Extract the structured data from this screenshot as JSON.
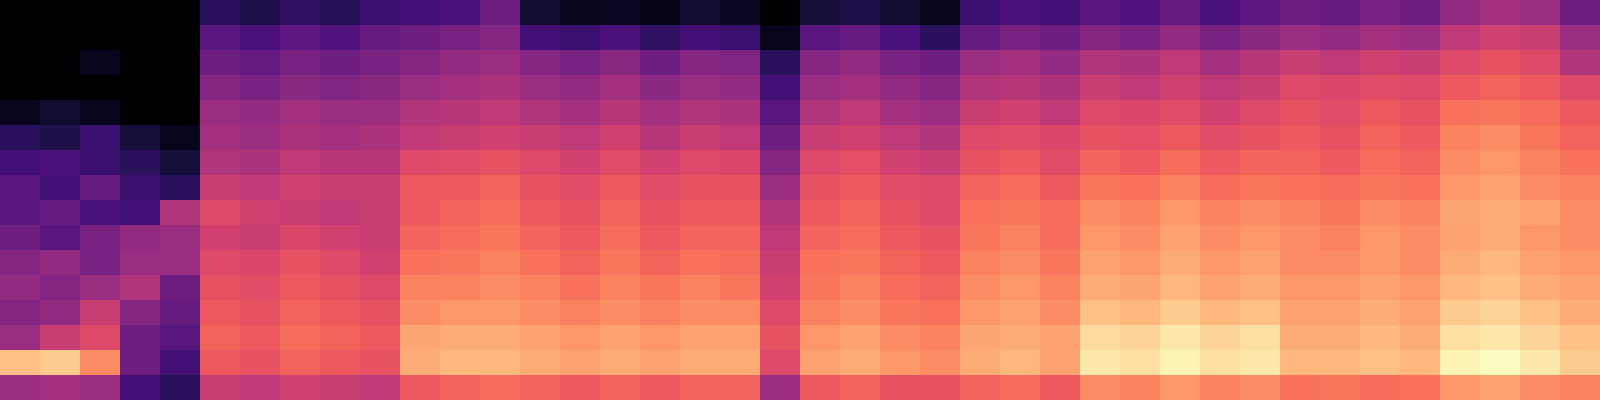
{
  "chart_data": {
    "type": "heatmap",
    "color": "magma",
    "tick_labels": false,
    "cells": [
      [
        0,
        0,
        0,
        0,
        0,
        15,
        12,
        16,
        14,
        18,
        20,
        22,
        30,
        8,
        5,
        6,
        4,
        8,
        6,
        0,
        10,
        12,
        8,
        5,
        18,
        22,
        20,
        25,
        24,
        28,
        22,
        26,
        30,
        28,
        32,
        30,
        38,
        42,
        40,
        30
      ],
      [
        0,
        0,
        0,
        0,
        0,
        25,
        22,
        26,
        24,
        28,
        30,
        32,
        35,
        20,
        18,
        22,
        16,
        20,
        18,
        5,
        25,
        28,
        22,
        15,
        28,
        32,
        30,
        35,
        33,
        38,
        32,
        36,
        40,
        38,
        42,
        40,
        48,
        52,
        50,
        40
      ],
      [
        0,
        0,
        5,
        0,
        0,
        30,
        28,
        32,
        30,
        32,
        35,
        38,
        40,
        35,
        32,
        36,
        30,
        35,
        34,
        15,
        35,
        38,
        32,
        30,
        40,
        42,
        38,
        45,
        44,
        48,
        42,
        46,
        50,
        48,
        52,
        50,
        55,
        58,
        55,
        45
      ],
      [
        0,
        0,
        0,
        0,
        0,
        35,
        32,
        36,
        34,
        36,
        40,
        42,
        44,
        40,
        38,
        42,
        36,
        40,
        38,
        20,
        40,
        42,
        38,
        35,
        45,
        46,
        44,
        50,
        48,
        52,
        48,
        50,
        55,
        54,
        56,
        55,
        60,
        62,
        60,
        55
      ],
      [
        5,
        8,
        5,
        0,
        0,
        40,
        38,
        42,
        40,
        40,
        45,
        46,
        48,
        45,
        42,
        46,
        42,
        45,
        44,
        25,
        45,
        48,
        42,
        40,
        50,
        52,
        48,
        55,
        54,
        56,
        52,
        55,
        58,
        56,
        60,
        58,
        65,
        66,
        64,
        60
      ],
      [
        15,
        12,
        18,
        10,
        5,
        42,
        40,
        44,
        42,
        44,
        48,
        50,
        52,
        50,
        48,
        52,
        46,
        50,
        48,
        30,
        50,
        52,
        48,
        45,
        55,
        56,
        54,
        58,
        57,
        60,
        56,
        58,
        60,
        58,
        62,
        60,
        68,
        70,
        66,
        62
      ],
      [
        20,
        22,
        18,
        15,
        10,
        45,
        44,
        48,
        46,
        46,
        55,
        56,
        58,
        55,
        52,
        56,
        52,
        55,
        54,
        35,
        55,
        57,
        52,
        50,
        58,
        60,
        56,
        62,
        60,
        64,
        60,
        62,
        62,
        60,
        64,
        62,
        70,
        72,
        68,
        65
      ],
      [
        25,
        20,
        28,
        18,
        15,
        50,
        48,
        52,
        50,
        50,
        60,
        60,
        62,
        58,
        56,
        60,
        56,
        58,
        58,
        40,
        58,
        60,
        56,
        55,
        62,
        64,
        60,
        66,
        65,
        68,
        64,
        66,
        65,
        64,
        66,
        65,
        72,
        74,
        70,
        68
      ],
      [
        25,
        28,
        22,
        20,
        45,
        55,
        52,
        50,
        48,
        50,
        60,
        62,
        64,
        60,
        58,
        62,
        58,
        60,
        60,
        45,
        60,
        62,
        58,
        55,
        65,
        66,
        64,
        70,
        68,
        72,
        68,
        70,
        68,
        66,
        70,
        68,
        75,
        76,
        74,
        70
      ],
      [
        30,
        25,
        32,
        38,
        40,
        52,
        50,
        54,
        52,
        50,
        62,
        64,
        66,
        62,
        60,
        64,
        60,
        62,
        62,
        48,
        62,
        64,
        60,
        58,
        66,
        68,
        64,
        72,
        70,
        74,
        70,
        72,
        70,
        68,
        72,
        70,
        74,
        76,
        72,
        70
      ],
      [
        35,
        38,
        32,
        40,
        40,
        55,
        54,
        58,
        55,
        52,
        65,
        66,
        68,
        65,
        62,
        66,
        62,
        65,
        64,
        50,
        65,
        66,
        62,
        60,
        68,
        70,
        66,
        74,
        72,
        76,
        72,
        74,
        70,
        70,
        72,
        70,
        76,
        78,
        74,
        72
      ],
      [
        38,
        35,
        40,
        45,
        30,
        58,
        56,
        60,
        58,
        55,
        68,
        68,
        70,
        68,
        65,
        68,
        66,
        68,
        66,
        52,
        66,
        68,
        64,
        62,
        70,
        72,
        68,
        76,
        75,
        78,
        74,
        76,
        72,
        72,
        74,
        72,
        78,
        80,
        76,
        74
      ],
      [
        35,
        38,
        50,
        35,
        28,
        60,
        58,
        62,
        60,
        58,
        70,
        72,
        72,
        70,
        68,
        70,
        68,
        70,
        70,
        55,
        68,
        70,
        66,
        65,
        72,
        74,
        70,
        80,
        78,
        82,
        78,
        80,
        74,
        74,
        76,
        74,
        82,
        84,
        80,
        76
      ],
      [
        40,
        50,
        55,
        30,
        25,
        62,
        60,
        64,
        62,
        60,
        75,
        76,
        76,
        74,
        72,
        74,
        72,
        74,
        74,
        58,
        72,
        74,
        70,
        68,
        75,
        76,
        74,
        85,
        84,
        88,
        84,
        86,
        76,
        76,
        78,
        76,
        86,
        88,
        84,
        80
      ],
      [
        80,
        82,
        70,
        30,
        20,
        60,
        58,
        62,
        60,
        58,
        76,
        78,
        78,
        76,
        74,
        76,
        74,
        76,
        76,
        55,
        74,
        76,
        72,
        70,
        76,
        78,
        74,
        88,
        86,
        90,
        86,
        88,
        78,
        78,
        80,
        78,
        90,
        92,
        88,
        82
      ],
      [
        40,
        42,
        40,
        20,
        15,
        50,
        48,
        52,
        50,
        48,
        60,
        62,
        64,
        62,
        60,
        62,
        60,
        62,
        62,
        40,
        60,
        62,
        58,
        58,
        62,
        64,
        60,
        70,
        68,
        72,
        68,
        70,
        65,
        66,
        64,
        65,
        72,
        74,
        70,
        68
      ]
    ]
  }
}
